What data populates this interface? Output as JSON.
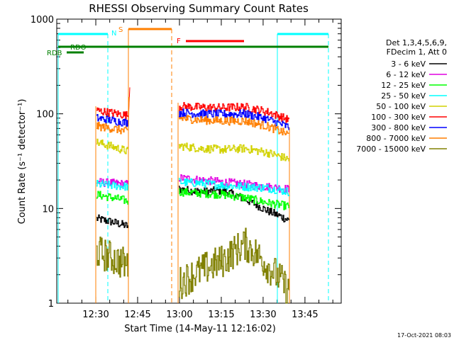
{
  "chart_data": {
    "type": "line",
    "title": "RHESSI Observing Summary Count Rates",
    "xlabel": "Start Time (14-May-11 12:16:02)",
    "ylabel": "Count Rate (s⁻¹ detector⁻¹)",
    "ylim": [
      1,
      1000
    ],
    "ytick_labels": [
      "1",
      "10",
      "100",
      "1000"
    ],
    "xlim_minutes_from_start": [
      0,
      102
    ],
    "x_tick_labels": [
      "12:30",
      "12:45",
      "13:00",
      "13:15",
      "13:30",
      "13:45"
    ],
    "x_tick_minutes": [
      14,
      29,
      44,
      59,
      74,
      89
    ],
    "legend_header": [
      "Det 1,3,4,5,6,9,",
      "FDecim 1, Att 0"
    ],
    "series": [
      {
        "name": "3 - 6 keV",
        "color": "#000000",
        "seg1": [
          7.8,
          7.2,
          6.5
        ],
        "seg2": [
          16,
          15,
          15.5,
          12.5,
          9.5,
          7.5
        ]
      },
      {
        "name": "6 - 12 keV",
        "color": "#e100e1",
        "seg1": [
          19,
          18.5,
          18
        ],
        "seg2": [
          21,
          20,
          19,
          18,
          17,
          16
        ]
      },
      {
        "name": "12 - 25 keV",
        "color": "#00ff00",
        "seg1": [
          14,
          13,
          12
        ],
        "seg2": [
          15,
          14.5,
          14,
          13,
          11.5,
          10.5
        ]
      },
      {
        "name": "25 - 50 keV",
        "color": "#00ffff",
        "seg1": [
          18,
          17.5,
          17
        ],
        "seg2": [
          19,
          18.5,
          17.5,
          17,
          16.5,
          15
        ]
      },
      {
        "name": "50 - 100 keV",
        "color": "#d2d200",
        "seg1": [
          50,
          45,
          40
        ],
        "seg2": [
          46,
          43,
          42,
          43,
          39,
          33
        ]
      },
      {
        "name": "100 - 300 keV",
        "color": "#ff0000",
        "seg1": [
          108,
          102,
          96
        ],
        "seg2": [
          120,
          117,
          116,
          118,
          105,
          86
        ]
      },
      {
        "name": "300 - 800 keV",
        "color": "#0000ff",
        "seg1": [
          90,
          85,
          80
        ],
        "seg2": [
          103,
          100,
          99,
          100,
          88,
          72
        ]
      },
      {
        "name": "800 - 7000 keV",
        "color": "#ff7f00",
        "seg1": [
          74,
          70,
          65
        ],
        "seg2": [
          90,
          86,
          84,
          84,
          74,
          60
        ]
      },
      {
        "name": "7000 - 15000 keV",
        "color": "#808000",
        "seg1": [
          3.5,
          3.0,
          2.5
        ],
        "seg2": [
          1.6,
          2.2,
          2.8,
          4.2,
          2.5,
          1.3
        ]
      }
    ],
    "annotations": [
      {
        "text": "N",
        "color": "#00ffff"
      },
      {
        "text": "S",
        "color": "#ff7f00"
      },
      {
        "text": "F",
        "color": "#ff0000"
      },
      {
        "text": "RDO",
        "color": "#008000"
      },
      {
        "text": "RDB",
        "color": "#008000"
      }
    ],
    "timestamp": "17-Oct-2021 08:03"
  }
}
